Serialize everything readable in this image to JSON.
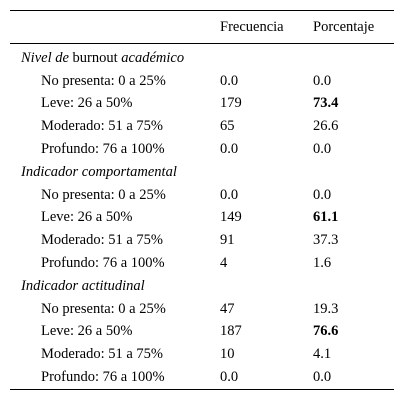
{
  "table": {
    "headers": [
      "",
      "Frecuencia",
      "Porcentaje"
    ],
    "sections": [
      {
        "title_prefix": "Nivel de",
        "title_plain": "burnout",
        "title_suffix": "académico",
        "rows": [
          {
            "label": "No presenta: 0 a 25%",
            "frecuencia": "0.0",
            "porcentaje": "0.0",
            "highlight": false
          },
          {
            "label": "Leve: 26 a 50%",
            "frecuencia": "179",
            "porcentaje": "73.4",
            "highlight": true
          },
          {
            "label": "Moderado: 51 a 75%",
            "frecuencia": "65",
            "porcentaje": "26.6",
            "highlight": false
          },
          {
            "label": "Profundo: 76 a 100%",
            "frecuencia": "0.0",
            "porcentaje": "0.0",
            "highlight": false
          }
        ]
      },
      {
        "title_prefix": "Indicador comportamental",
        "title_plain": "",
        "title_suffix": "",
        "rows": [
          {
            "label": "No presenta: 0 a 25%",
            "frecuencia": "0.0",
            "porcentaje": "0.0",
            "highlight": false
          },
          {
            "label": "Leve: 26 a 50%",
            "frecuencia": "149",
            "porcentaje": "61.1",
            "highlight": true
          },
          {
            "label": "Moderado: 51 a 75%",
            "frecuencia": "91",
            "porcentaje": "37.3",
            "highlight": false
          },
          {
            "label": "Profundo: 76 a 100%",
            "frecuencia": "4",
            "porcentaje": "1.6",
            "highlight": false
          }
        ]
      },
      {
        "title_prefix": "Indicador actitudinal",
        "title_plain": "",
        "title_suffix": "",
        "rows": [
          {
            "label": "No presenta: 0 a 25%",
            "frecuencia": "47",
            "porcentaje": "19.3",
            "highlight": false
          },
          {
            "label": "Leve: 26 a 50%",
            "frecuencia": "187",
            "porcentaje": "76.6",
            "highlight": true
          },
          {
            "label": "Moderado: 51 a 75%",
            "frecuencia": "10",
            "porcentaje": "4.1",
            "highlight": false
          },
          {
            "label": "Profundo: 76 a 100%",
            "frecuencia": "0.0",
            "porcentaje": "0.0",
            "highlight": false
          }
        ]
      }
    ]
  }
}
